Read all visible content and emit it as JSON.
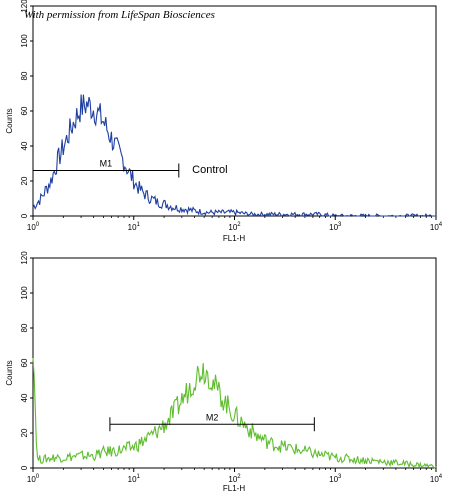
{
  "watermark": "With permission from LifeSpan Biosciences",
  "chart_data": [
    {
      "type": "line",
      "panel": "top",
      "ylabel": "Counts",
      "xlabel": "FL1-H",
      "xscale": "log",
      "xlim": [
        1,
        10000
      ],
      "ylim": [
        0,
        120
      ],
      "yticks": [
        "0",
        "20",
        "40",
        "60",
        "80",
        "100",
        "120"
      ],
      "xticks": [
        "10^0",
        "10^1",
        "10^2",
        "10^3",
        "10^4"
      ],
      "series": [
        {
          "name": "Control",
          "color": "#1f3fa0",
          "x": [
            1.0,
            1.2,
            1.5,
            1.8,
            2.2,
            2.6,
            3.0,
            3.5,
            4.0,
            4.5,
            5.0,
            5.6,
            6.3,
            7.0,
            8.0,
            9.0,
            10.5,
            12.0,
            14.0,
            17.0,
            20.0,
            25.0,
            32.0,
            40.0,
            55.0,
            75.0,
            100.0,
            150.0,
            250.0,
            400.0,
            700.0,
            1000.0,
            2000.0,
            4000.0,
            10000.0
          ],
          "y": [
            5,
            10,
            20,
            33,
            45,
            55,
            62,
            64,
            61,
            58,
            54,
            48,
            42,
            37,
            31,
            25,
            18,
            14,
            11,
            8,
            7,
            5,
            4,
            3,
            2,
            2,
            2,
            1,
            1,
            1,
            1,
            0,
            0,
            0,
            0
          ]
        }
      ],
      "annotations": [
        {
          "label": "M1",
          "x_start": 1.0,
          "x_end": 28.0,
          "y": 26
        },
        {
          "label": "Control",
          "x": 38.0,
          "y": 27
        }
      ]
    },
    {
      "type": "line",
      "panel": "bottom",
      "ylabel": "Counts",
      "xlabel": "FL1-H",
      "xscale": "log",
      "xlim": [
        1,
        10000
      ],
      "ylim": [
        0,
        120
      ],
      "yticks": [
        "0",
        "20",
        "40",
        "60",
        "80",
        "100",
        "120"
      ],
      "xticks": [
        "10^0",
        "10^1",
        "10^2",
        "10^3",
        "10^4"
      ],
      "series": [
        {
          "name": "",
          "color": "#5fbd2f",
          "x": [
            1.0,
            1.1,
            1.3,
            1.6,
            2.0,
            3.0,
            4.0,
            5.0,
            7.0,
            10.0,
            13.0,
            17.0,
            22.0,
            28.0,
            35.0,
            42.0,
            48.0,
            55.0,
            65.0,
            80.0,
            100.0,
            130.0,
            170.0,
            230.0,
            320.0,
            450.0,
            650.0,
            1000.0,
            1500.0,
            2500.0,
            4000.0,
            6000.0,
            10000.0
          ],
          "y": [
            72,
            5,
            5,
            6,
            6,
            7,
            7,
            9,
            10,
            12,
            16,
            21,
            27,
            36,
            45,
            53,
            57,
            54,
            46,
            38,
            30,
            24,
            18,
            14,
            12,
            10,
            8,
            6,
            5,
            4,
            3,
            2,
            1
          ]
        }
      ],
      "annotations": [
        {
          "label": "M2",
          "x_start": 5.8,
          "x_end": 620.0,
          "y": 25
        }
      ]
    }
  ]
}
